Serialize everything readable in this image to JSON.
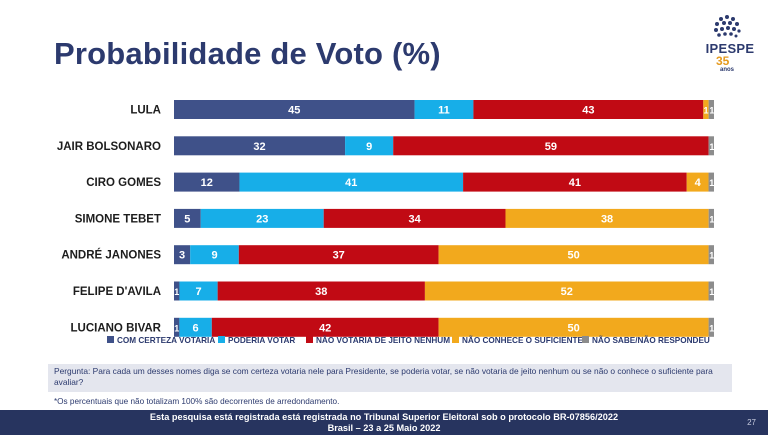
{
  "title": "Probabilidade de Voto (%)",
  "logo": {
    "brand": "IPESPE",
    "years": "35",
    "suffix": "anos"
  },
  "chart_data": {
    "type": "bar",
    "orientation": "horizontal",
    "stacked": true,
    "categories": [
      "LULA",
      "JAIR BOLSONARO",
      "CIRO GOMES",
      "SIMONE  TEBET",
      "ANDRÉ JANONES",
      "FELIPE D'AVILA",
      "LUCIANO BIVAR"
    ],
    "series": [
      {
        "name": "COM CERTEZA VOTARIA",
        "color": "#3f5189",
        "values": [
          45,
          32,
          12,
          5,
          3,
          1,
          1
        ]
      },
      {
        "name": "PODERIA VOTAR",
        "color": "#17aee8",
        "values": [
          11,
          9,
          41,
          23,
          9,
          7,
          6
        ]
      },
      {
        "name": "NÃO VOTARIA DE JEITO NENHUM",
        "color": "#c10a14",
        "values": [
          43,
          59,
          41,
          34,
          37,
          38,
          42
        ]
      },
      {
        "name": "NÃO CONHECE O SUFICIENTE",
        "color": "#f2a91d",
        "values": [
          1,
          0,
          4,
          38,
          50,
          52,
          50
        ]
      },
      {
        "name": "NÃO SABE/NÃO RESPONDEU",
        "color": "#8c8c8c",
        "values": [
          1,
          1,
          1,
          1,
          1,
          1,
          1
        ]
      }
    ],
    "labels": [
      [
        "45",
        "11",
        "43",
        "1",
        "1"
      ],
      [
        "32",
        "9",
        "59",
        "",
        "1"
      ],
      [
        "12",
        "41",
        "41",
        "4",
        "1"
      ],
      [
        "5",
        "23",
        "34",
        "38",
        "1"
      ],
      [
        "3",
        "9",
        "37",
        "50",
        "1"
      ],
      [
        "1",
        "7",
        "38",
        "52",
        "1"
      ],
      [
        "1",
        "6",
        "42",
        "50",
        "1"
      ]
    ],
    "xlim": [
      0,
      100
    ],
    "legend_position": "bottom"
  },
  "question": "Pergunta:  Para cada um desses nomes diga se com certeza votaria nele para Presidente, se poderia votar, se não votaria de jeito nenhum ou se não o conhece o suficiente para avaliar?",
  "note": "*Os percentuais que não totalizam 100% são decorrentes de arredondamento.",
  "footer": {
    "line1": "Esta pesquisa está registrada está registrada no Tribunal Superior Eleitoral sob o protocolo BR-07856/2022",
    "line2": "Brasil – 23 a 25 Maio 2022",
    "page": "27"
  }
}
